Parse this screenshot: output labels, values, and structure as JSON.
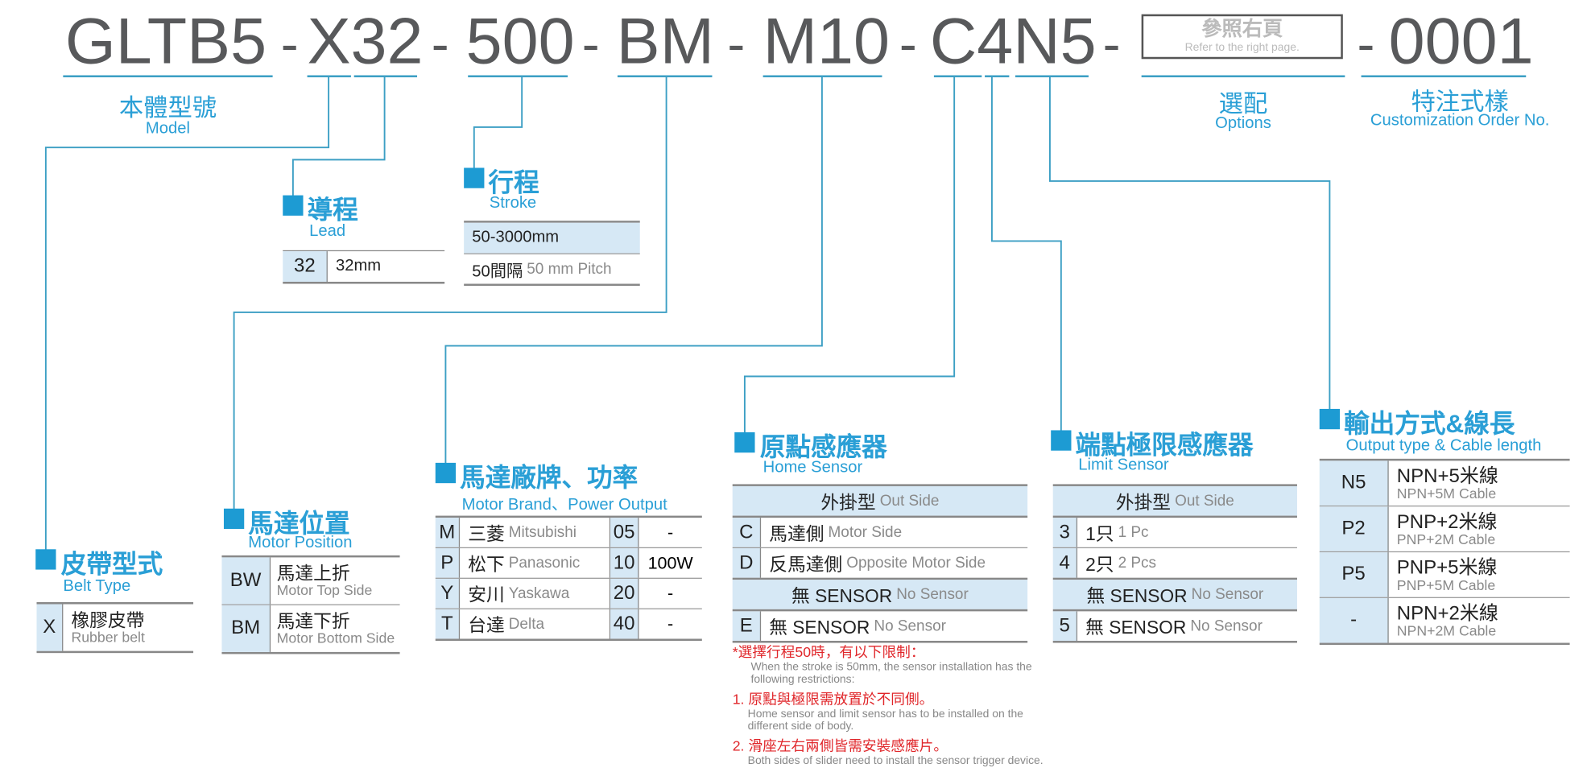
{
  "code": {
    "segments": [
      "GLTB5",
      "X32",
      "500",
      "BM",
      "M10",
      "C4N5",
      "0001"
    ],
    "separator": "-",
    "options_box": {
      "zh": "參照右頁",
      "en": "Refer to the right page."
    }
  },
  "labels": {
    "model": {
      "zh": "本體型號",
      "en": "Model"
    },
    "options": {
      "zh": "選配",
      "en": "Options"
    },
    "custom": {
      "zh": "特注式樣",
      "en": "Customization Order No."
    }
  },
  "belt": {
    "title": "皮帶型式",
    "sub": "Belt Type",
    "rows": [
      {
        "key": "X",
        "zh": "橡膠皮帶",
        "en": "Rubber belt"
      }
    ]
  },
  "lead": {
    "title": "導程",
    "sub": "Lead",
    "rows": [
      {
        "key": "32",
        "value": "32mm"
      }
    ]
  },
  "stroke": {
    "title": "行程",
    "sub": "Stroke",
    "range": "50-3000mm",
    "pitch_zh": "50間隔",
    "pitch_en": "50 mm Pitch"
  },
  "motor_position": {
    "title": "馬達位置",
    "sub": "Motor Position",
    "rows": [
      {
        "key": "BW",
        "zh": "馬達上折",
        "en": "Motor Top Side"
      },
      {
        "key": "BM",
        "zh": "馬達下折",
        "en": "Motor Bottom Side"
      }
    ]
  },
  "motor_brand": {
    "title": "馬達廠牌、功率",
    "sub": "Motor Brand、Power Output",
    "rows": [
      {
        "key": "M",
        "zh": "三菱",
        "en": "Mitsubishi",
        "num": "05",
        "power": "-"
      },
      {
        "key": "P",
        "zh": "松下",
        "en": "Panasonic",
        "num": "10",
        "power": "100W"
      },
      {
        "key": "Y",
        "zh": "安川",
        "en": "Yaskawa",
        "num": "20",
        "power": "-"
      },
      {
        "key": "T",
        "zh": "台達",
        "en": "Delta",
        "num": "40",
        "power": "-"
      }
    ]
  },
  "home_sensor": {
    "title": "原點感應器",
    "sub": "Home Sensor",
    "header1": {
      "zh": "外掛型",
      "en": "Out Side"
    },
    "rows1": [
      {
        "key": "C",
        "zh": "馬達側",
        "en": "Motor Side"
      },
      {
        "key": "D",
        "zh": "反馬達側",
        "en": "Opposite Motor Side"
      }
    ],
    "header2": {
      "zh": "無 SENSOR",
      "en": "No Sensor"
    },
    "rows2": [
      {
        "key": "E",
        "zh": "無 SENSOR",
        "en": "No Sensor"
      }
    ]
  },
  "limit_sensor": {
    "title": "端點極限感應器",
    "sub": "Limit Sensor",
    "header1": {
      "zh": "外掛型",
      "en": "Out Side"
    },
    "rows1": [
      {
        "key": "3",
        "zh": "1只",
        "en": "1 Pc"
      },
      {
        "key": "4",
        "zh": "2只",
        "en": "2 Pcs"
      }
    ],
    "header2": {
      "zh": "無 SENSOR",
      "en": "No Sensor"
    },
    "rows2": [
      {
        "key": "5",
        "zh": "無 SENSOR",
        "en": "No Sensor"
      }
    ]
  },
  "output": {
    "title": "輸出方式&線長",
    "sub": "Output type & Cable length",
    "rows": [
      {
        "key": "N5",
        "zh": "NPN+5米線",
        "en": "NPN+5M Cable"
      },
      {
        "key": "P2",
        "zh": "PNP+2米線",
        "en": "PNP+2M Cable"
      },
      {
        "key": "P5",
        "zh": "PNP+5米線",
        "en": "PNP+5M Cable"
      },
      {
        "key": "-",
        "zh": "NPN+2米線",
        "en": "NPN+2M Cable"
      }
    ]
  },
  "notes": {
    "head_zh": "*選擇行程50時，有以下限制：",
    "head_en": "When the stroke is 50mm, the sensor installation has the following restrictions:",
    "items": [
      {
        "zh": "1. 原點與極限需放置於不同側。",
        "en": "Home sensor and limit sensor has to be installed on the different side of body."
      },
      {
        "zh": "2. 滑座左右兩側皆需安裝感應片。",
        "en": "Both sides of slider need to install the sensor trigger device."
      }
    ]
  },
  "colors": {
    "accent": "#2a9fd6",
    "key_cell": "#d6e8f5",
    "code_text": "#58595b",
    "note_red": "#e0262a"
  }
}
